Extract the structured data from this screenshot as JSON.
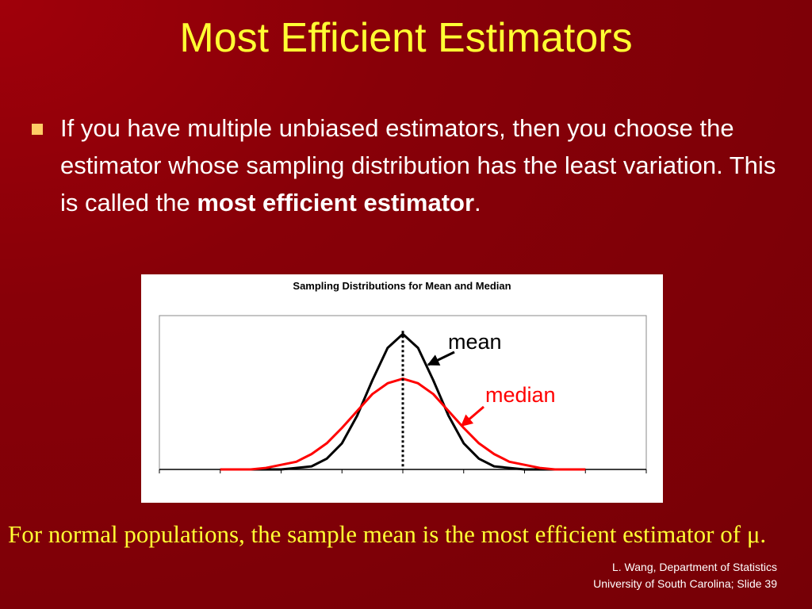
{
  "title": "Most Efficient Estimators",
  "bullet": {
    "text": "If you have multiple unbiased estimators, then you choose the estimator whose sampling distribution has the least variation. This is called the ",
    "bold": "most efficient estimator",
    "end": "."
  },
  "chart_data": {
    "type": "line",
    "title": "Sampling Distributions for Mean and Median",
    "x": [
      -3,
      -2.75,
      -2.5,
      -2.25,
      -2,
      -1.75,
      -1.5,
      -1.25,
      -1,
      -0.75,
      -0.5,
      -0.25,
      0,
      0.25,
      0.5,
      0.75,
      1,
      1.25,
      1.5,
      1.75,
      2,
      2.25,
      2.5,
      2.75,
      3
    ],
    "series": [
      {
        "name": "mean",
        "color": "#000000",
        "values": [
          0,
          0,
          0,
          0,
          0,
          0.01,
          0.02,
          0.07,
          0.17,
          0.35,
          0.58,
          0.79,
          0.88,
          0.79,
          0.58,
          0.35,
          0.17,
          0.07,
          0.02,
          0.01,
          0,
          0,
          0,
          0,
          0
        ]
      },
      {
        "name": "median",
        "color": "#ff0000",
        "values": [
          0,
          0,
          0,
          0.01,
          0.03,
          0.05,
          0.1,
          0.17,
          0.27,
          0.38,
          0.49,
          0.56,
          0.59,
          0.56,
          0.49,
          0.38,
          0.27,
          0.17,
          0.1,
          0.05,
          0.03,
          0.01,
          0,
          0,
          0
        ]
      }
    ],
    "xlim": [
      -4,
      4
    ],
    "xticks": [
      -4,
      -3,
      -2,
      -1,
      0,
      1,
      2,
      3,
      4
    ],
    "ylim": [
      0,
      1
    ]
  },
  "caption": "For normal populations, the sample mean is the most efficient estimator of μ.",
  "footer": [
    "L. Wang, Department of Statistics",
    "University of South Carolina; Slide 39"
  ]
}
